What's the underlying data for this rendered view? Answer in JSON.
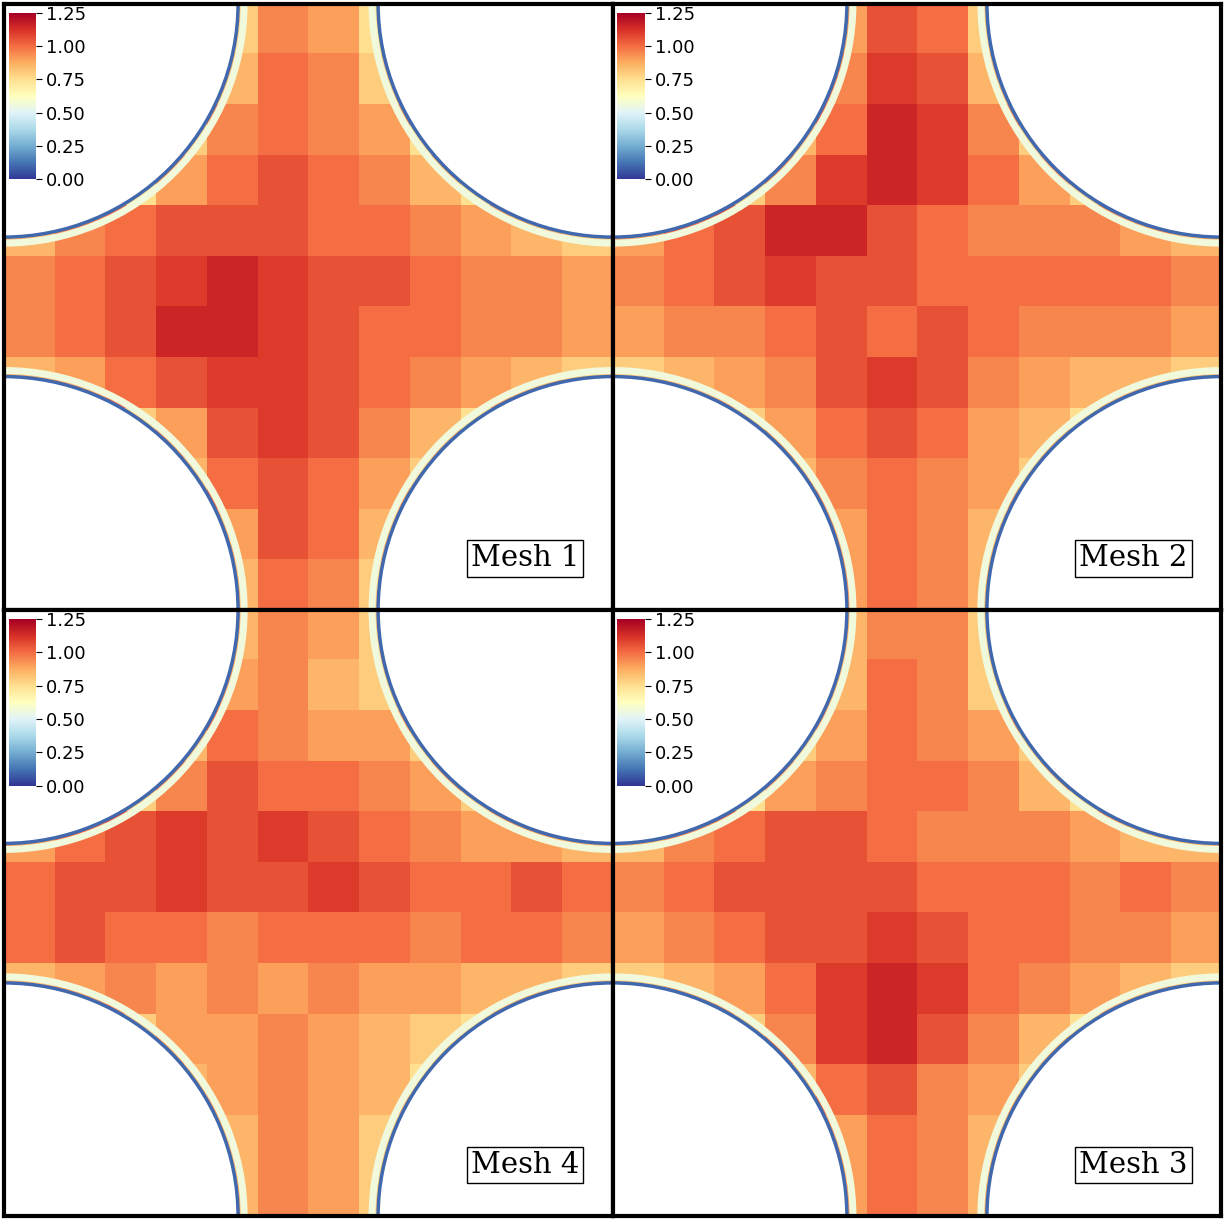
{
  "chart_data": [
    {
      "type": "heatmap",
      "annotation": "Mesh 1",
      "tick_labels": false,
      "colorbar_range": [
        0,
        1.25
      ],
      "colorbar_ticks": [
        {
          "value": 0,
          "label": "0.00"
        },
        {
          "value": 0.25,
          "label": "0.25"
        },
        {
          "value": 0.5,
          "label": "0.50"
        },
        {
          "value": 0.75,
          "label": "0.75"
        },
        {
          "value": 1.0,
          "label": "1.00"
        },
        {
          "value": 1.25,
          "label": "1.25"
        }
      ],
      "cells": [
        [
          null,
          null,
          null,
          null,
          0.8,
          0.95,
          0.9,
          0.75,
          null,
          null,
          null,
          null
        ],
        [
          null,
          null,
          null,
          null,
          0.85,
          1.0,
          0.95,
          0.8,
          null,
          null,
          null,
          null
        ],
        [
          null,
          null,
          null,
          0.8,
          0.95,
          1.0,
          0.95,
          0.9,
          0.75,
          null,
          null,
          null
        ],
        [
          null,
          null,
          0.75,
          0.9,
          1.0,
          1.05,
          1.0,
          0.95,
          0.85,
          0.75,
          null,
          null
        ],
        [
          0.85,
          0.95,
          1.0,
          1.05,
          1.05,
          1.05,
          1.0,
          1.0,
          0.95,
          0.9,
          0.85,
          0.8
        ],
        [
          0.95,
          1.0,
          1.05,
          1.1,
          1.15,
          1.1,
          1.05,
          1.05,
          1.0,
          0.95,
          0.95,
          0.9
        ],
        [
          0.95,
          1.0,
          1.05,
          1.15,
          1.15,
          1.1,
          1.05,
          1.0,
          1.0,
          0.95,
          0.95,
          0.9
        ],
        [
          0.85,
          0.9,
          1.0,
          1.05,
          1.1,
          1.1,
          1.05,
          1.0,
          0.95,
          0.9,
          0.85,
          0.8
        ],
        [
          null,
          null,
          0.8,
          0.9,
          1.05,
          1.1,
          1.05,
          0.95,
          0.85,
          0.75,
          null,
          null
        ],
        [
          null,
          null,
          null,
          0.85,
          1.0,
          1.05,
          1.0,
          0.9,
          0.8,
          null,
          null,
          null
        ],
        [
          null,
          null,
          null,
          null,
          0.9,
          1.05,
          1.0,
          0.85,
          null,
          null,
          null,
          null
        ],
        [
          null,
          null,
          null,
          null,
          0.85,
          1.0,
          0.95,
          0.8,
          null,
          null,
          null,
          null
        ]
      ]
    },
    {
      "type": "heatmap",
      "annotation": "Mesh 2",
      "tick_labels": false,
      "colorbar_range": [
        0,
        1.25
      ],
      "colorbar_ticks": [
        {
          "value": 0,
          "label": "0.00"
        },
        {
          "value": 0.25,
          "label": "0.25"
        },
        {
          "value": 0.5,
          "label": "0.50"
        },
        {
          "value": 0.75,
          "label": "0.75"
        },
        {
          "value": 1.0,
          "label": "1.00"
        },
        {
          "value": 1.25,
          "label": "1.25"
        }
      ],
      "cells": [
        [
          null,
          null,
          null,
          null,
          0.9,
          1.05,
          1.0,
          0.8,
          null,
          null,
          null,
          null
        ],
        [
          null,
          null,
          null,
          null,
          0.95,
          1.1,
          1.05,
          0.85,
          null,
          null,
          null,
          null
        ],
        [
          null,
          null,
          null,
          0.85,
          1.0,
          1.15,
          1.1,
          0.95,
          0.8,
          null,
          null,
          null
        ],
        [
          null,
          null,
          0.8,
          0.95,
          1.1,
          1.15,
          1.1,
          1.0,
          0.9,
          0.8,
          null,
          null
        ],
        [
          0.9,
          1.0,
          1.05,
          1.15,
          1.15,
          1.05,
          1.0,
          0.95,
          0.95,
          0.95,
          0.9,
          0.85
        ],
        [
          0.95,
          1.0,
          1.05,
          1.1,
          1.05,
          1.05,
          1.0,
          1.0,
          1.0,
          1.0,
          1.0,
          0.95
        ],
        [
          0.9,
          0.95,
          0.95,
          1.0,
          1.05,
          1.0,
          1.05,
          1.0,
          0.95,
          0.95,
          0.95,
          0.9
        ],
        [
          0.8,
          0.85,
          0.9,
          0.95,
          1.05,
          1.1,
          1.05,
          0.95,
          0.9,
          0.85,
          0.85,
          0.8
        ],
        [
          null,
          null,
          0.8,
          0.9,
          1.0,
          1.05,
          1.0,
          0.9,
          0.85,
          0.75,
          null,
          null
        ],
        [
          null,
          null,
          null,
          0.85,
          0.95,
          1.0,
          0.95,
          0.9,
          0.8,
          null,
          null,
          null
        ],
        [
          null,
          null,
          null,
          null,
          0.9,
          1.0,
          0.95,
          0.85,
          null,
          null,
          null,
          null
        ],
        [
          null,
          null,
          null,
          null,
          0.9,
          1.0,
          0.95,
          0.85,
          null,
          null,
          null,
          null
        ]
      ]
    },
    {
      "type": "heatmap",
      "annotation": "Mesh 4",
      "tick_labels": false,
      "colorbar_range": [
        0,
        1.25
      ],
      "colorbar_ticks": [
        {
          "value": 0,
          "label": "0.00"
        },
        {
          "value": 0.25,
          "label": "0.25"
        },
        {
          "value": 0.5,
          "label": "0.50"
        },
        {
          "value": 0.75,
          "label": "0.75"
        },
        {
          "value": 1.0,
          "label": "1.00"
        },
        {
          "value": 1.25,
          "label": "1.25"
        }
      ],
      "cells": [
        [
          null,
          null,
          null,
          null,
          0.85,
          0.95,
          0.9,
          0.8,
          null,
          null,
          null,
          null
        ],
        [
          null,
          null,
          null,
          null,
          0.9,
          0.95,
          0.85,
          0.8,
          null,
          null,
          null,
          null
        ],
        [
          null,
          null,
          null,
          0.85,
          1.0,
          0.95,
          0.9,
          0.9,
          0.8,
          null,
          null,
          null
        ],
        [
          null,
          null,
          0.8,
          0.95,
          1.05,
          1.0,
          1.0,
          0.95,
          0.9,
          0.8,
          null,
          null
        ],
        [
          0.9,
          1.0,
          1.05,
          1.1,
          1.05,
          1.1,
          1.05,
          1.0,
          0.95,
          0.9,
          0.9,
          0.85
        ],
        [
          1.0,
          1.05,
          1.05,
          1.1,
          1.05,
          1.05,
          1.1,
          1.05,
          1.0,
          1.0,
          1.05,
          1.0
        ],
        [
          1.0,
          1.05,
          1.0,
          1.0,
          0.95,
          1.0,
          1.0,
          1.0,
          0.95,
          1.0,
          1.0,
          0.95
        ],
        [
          0.85,
          0.9,
          0.95,
          0.9,
          0.95,
          0.9,
          0.95,
          0.9,
          0.9,
          0.85,
          0.85,
          0.8
        ],
        [
          null,
          null,
          0.8,
          0.9,
          0.9,
          0.95,
          0.9,
          0.85,
          0.8,
          0.75,
          null,
          null
        ],
        [
          null,
          null,
          null,
          0.85,
          0.9,
          0.95,
          0.9,
          0.85,
          0.75,
          null,
          null,
          null
        ],
        [
          null,
          null,
          null,
          null,
          0.85,
          0.95,
          0.9,
          0.8,
          null,
          null,
          null,
          null
        ],
        [
          null,
          null,
          null,
          null,
          0.85,
          0.95,
          0.9,
          0.8,
          null,
          null,
          null,
          null
        ]
      ]
    },
    {
      "type": "heatmap",
      "annotation": "Mesh 3",
      "tick_labels": false,
      "colorbar_range": [
        0,
        1.25
      ],
      "colorbar_ticks": [
        {
          "value": 0,
          "label": "0.00"
        },
        {
          "value": 0.25,
          "label": "0.25"
        },
        {
          "value": 0.5,
          "label": "0.50"
        },
        {
          "value": 0.75,
          "label": "0.75"
        },
        {
          "value": 1.0,
          "label": "1.00"
        },
        {
          "value": 1.25,
          "label": "1.25"
        }
      ],
      "cells": [
        [
          null,
          null,
          null,
          null,
          0.85,
          0.95,
          0.95,
          0.8,
          null,
          null,
          null,
          null
        ],
        [
          null,
          null,
          null,
          null,
          0.85,
          1.0,
          0.95,
          0.8,
          null,
          null,
          null,
          null
        ],
        [
          null,
          null,
          null,
          0.8,
          0.9,
          1.0,
          0.95,
          0.9,
          0.8,
          null,
          null,
          null
        ],
        [
          null,
          null,
          0.75,
          0.9,
          0.95,
          1.0,
          1.0,
          0.95,
          0.85,
          0.75,
          null,
          null
        ],
        [
          0.85,
          0.95,
          1.0,
          1.05,
          1.05,
          1.0,
          0.95,
          0.95,
          0.95,
          0.9,
          0.85,
          0.85
        ],
        [
          0.95,
          1.0,
          1.05,
          1.05,
          1.05,
          1.05,
          1.0,
          1.0,
          1.0,
          0.95,
          1.0,
          0.95
        ],
        [
          0.9,
          0.95,
          1.0,
          1.05,
          1.05,
          1.1,
          1.05,
          1.0,
          1.0,
          0.95,
          0.95,
          0.9
        ],
        [
          0.8,
          0.85,
          0.9,
          1.0,
          1.1,
          1.15,
          1.1,
          1.0,
          0.95,
          0.9,
          0.85,
          0.8
        ],
        [
          null,
          null,
          0.8,
          0.95,
          1.1,
          1.15,
          1.05,
          0.95,
          0.85,
          0.75,
          null,
          null
        ],
        [
          null,
          null,
          null,
          0.85,
          1.0,
          1.05,
          0.95,
          0.9,
          0.8,
          null,
          null,
          null
        ],
        [
          null,
          null,
          null,
          null,
          0.9,
          1.0,
          0.95,
          0.85,
          null,
          null,
          null,
          null
        ],
        [
          null,
          null,
          null,
          null,
          0.9,
          1.0,
          0.95,
          0.85,
          null,
          null,
          null,
          null
        ]
      ]
    }
  ]
}
